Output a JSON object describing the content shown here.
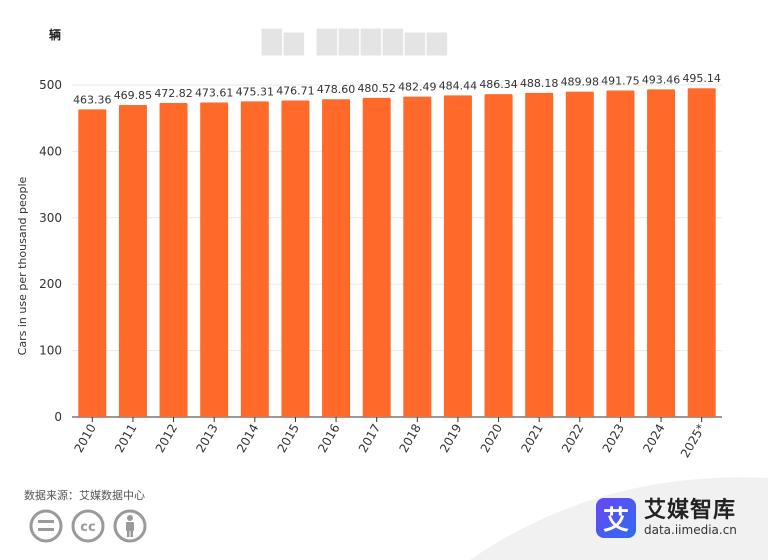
{
  "chart_data": {
    "type": "bar",
    "title": "",
    "unit": "辆",
    "ylabel": "Cars in use per thousand people",
    "xlabel": "",
    "ylim": [
      0,
      500
    ],
    "yticks": [
      0,
      100,
      200,
      300,
      400,
      500
    ],
    "grid": true,
    "color": "#ff6a2b",
    "categories": [
      "2010",
      "2011",
      "2012",
      "2013",
      "2014",
      "2015",
      "2016",
      "2017",
      "2018",
      "2019",
      "2020",
      "2021",
      "2022",
      "2023",
      "2024",
      "2025*"
    ],
    "values": [
      463.36,
      469.85,
      472.82,
      473.61,
      475.31,
      476.71,
      478.6,
      480.52,
      482.49,
      484.44,
      486.34,
      488.18,
      489.98,
      491.75,
      493.46,
      495.14
    ],
    "value_labels": [
      "463.36",
      "469.85",
      "472.82",
      "473.61",
      "475.31",
      "476.71",
      "478.60",
      "480.52",
      "482.49",
      "484.44",
      "486.34",
      "488.18",
      "489.98",
      "491.75",
      "493.46",
      "495.14"
    ]
  },
  "footer": {
    "source": "数据来源：艾媒数据中心",
    "brand_logo_char": "艾",
    "brand_name": "艾媒智库",
    "brand_url": "data.iimedia.cn"
  }
}
